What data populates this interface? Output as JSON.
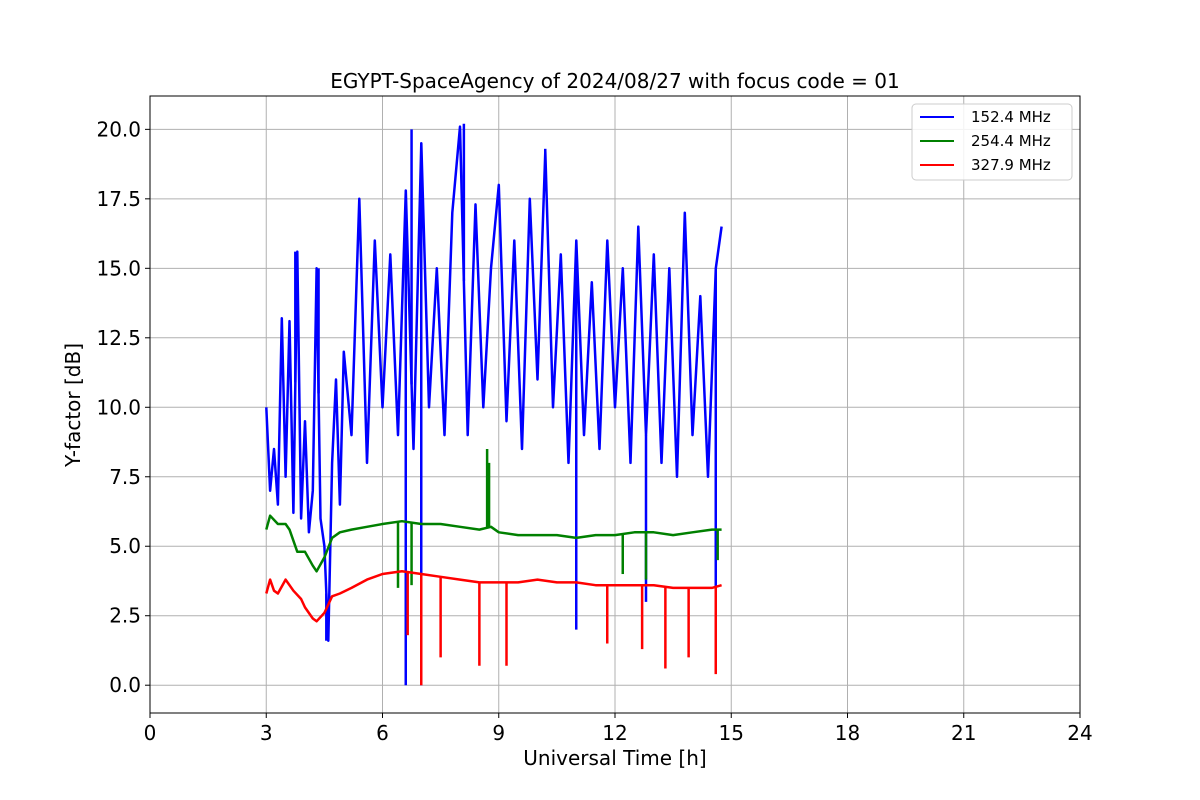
{
  "chart_data": {
    "type": "line",
    "title": "EGYPT-SpaceAgency of 2024/08/27 with focus code = 01",
    "xlabel": "Universal Time [h]",
    "ylabel": "Y-factor [dB]",
    "xlim": [
      0,
      24
    ],
    "ylim": [
      -1.0,
      21.2
    ],
    "xticks": [
      0,
      3,
      6,
      9,
      12,
      15,
      18,
      21,
      24
    ],
    "xtick_labels": [
      "0",
      "3",
      "6",
      "9",
      "12",
      "15",
      "18",
      "21",
      "24"
    ],
    "yticks": [
      0.0,
      2.5,
      5.0,
      7.5,
      10.0,
      12.5,
      15.0,
      17.5,
      20.0
    ],
    "ytick_labels": [
      "0.0",
      "2.5",
      "5.0",
      "7.5",
      "10.0",
      "12.5",
      "15.0",
      "17.5",
      "20.0"
    ],
    "grid": true,
    "legend_position": "top-right",
    "series": [
      {
        "name": "152.4 MHz",
        "color": "#0000ff",
        "x": [
          3.0,
          3.1,
          3.2,
          3.3,
          3.4,
          3.5,
          3.6,
          3.7,
          3.8,
          3.9,
          4.0,
          4.1,
          4.2,
          4.3,
          4.4,
          4.5,
          4.6,
          4.7,
          4.8,
          4.9,
          5.0,
          5.2,
          5.4,
          5.6,
          5.8,
          6.0,
          6.2,
          6.4,
          6.6,
          6.8,
          7.0,
          7.2,
          7.4,
          7.6,
          7.8,
          8.0,
          8.2,
          8.4,
          8.6,
          8.8,
          9.0,
          9.2,
          9.4,
          9.6,
          9.8,
          10.0,
          10.2,
          10.4,
          10.6,
          10.8,
          11.0,
          11.2,
          11.4,
          11.6,
          11.8,
          12.0,
          12.2,
          12.4,
          12.6,
          12.8,
          13.0,
          13.2,
          13.4,
          13.6,
          13.8,
          14.0,
          14.2,
          14.4,
          14.6,
          14.75
        ],
        "y": [
          10.0,
          7.0,
          8.5,
          6.5,
          13.2,
          7.5,
          13.1,
          6.2,
          15.6,
          6.0,
          9.5,
          5.5,
          7.0,
          15.0,
          6.0,
          5.0,
          1.6,
          8.0,
          11.0,
          6.5,
          12.0,
          9.0,
          17.5,
          8.0,
          16.0,
          10.0,
          15.5,
          9.0,
          17.8,
          8.5,
          19.5,
          10.0,
          15.0,
          9.0,
          17.0,
          20.1,
          9.0,
          17.3,
          10.0,
          15.0,
          18.0,
          9.5,
          16.0,
          8.5,
          17.5,
          11.0,
          19.2,
          10.0,
          15.5,
          8.0,
          16.0,
          9.0,
          14.5,
          8.5,
          16.0,
          10.0,
          15.0,
          8.0,
          16.5,
          9.0,
          15.5,
          8.0,
          15.0,
          7.5,
          17.0,
          9.0,
          14.0,
          7.5,
          15.0,
          16.5
        ],
        "dips": [
          [
            4.55,
            1.6
          ],
          [
            6.6,
            0.0
          ],
          [
            7.0,
            0.0
          ],
          [
            11.0,
            2.0
          ],
          [
            12.8,
            3.0
          ],
          [
            14.6,
            3.5
          ]
        ],
        "spikes": [
          [
            6.75,
            20.0
          ],
          [
            8.1,
            20.2
          ],
          [
            10.2,
            19.3
          ],
          [
            3.75,
            15.6
          ],
          [
            4.35,
            15.0
          ]
        ]
      },
      {
        "name": "254.4 MHz",
        "color": "#008000",
        "x": [
          3.0,
          3.1,
          3.3,
          3.5,
          3.6,
          3.8,
          4.0,
          4.2,
          4.3,
          4.5,
          4.7,
          4.9,
          5.2,
          5.6,
          6.0,
          6.5,
          7.0,
          7.5,
          8.0,
          8.5,
          8.8,
          9.0,
          9.5,
          10.0,
          10.5,
          11.0,
          11.5,
          12.0,
          12.5,
          13.0,
          13.5,
          14.0,
          14.5,
          14.75
        ],
        "y": [
          5.6,
          6.1,
          5.8,
          5.8,
          5.6,
          4.8,
          4.8,
          4.3,
          4.1,
          4.6,
          5.3,
          5.5,
          5.6,
          5.7,
          5.8,
          5.9,
          5.8,
          5.8,
          5.7,
          5.6,
          5.7,
          5.5,
          5.4,
          5.4,
          5.4,
          5.3,
          5.4,
          5.4,
          5.5,
          5.5,
          5.4,
          5.5,
          5.6,
          5.6
        ],
        "spikes": [
          [
            8.7,
            8.5
          ],
          [
            8.75,
            8.0
          ]
        ],
        "dips": [
          [
            6.4,
            3.5
          ],
          [
            6.75,
            3.6
          ],
          [
            12.2,
            4.0
          ],
          [
            12.8,
            3.8
          ],
          [
            14.65,
            4.5
          ]
        ]
      },
      {
        "name": "327.9 MHz",
        "color": "#ff0000",
        "x": [
          3.0,
          3.1,
          3.2,
          3.3,
          3.5,
          3.7,
          3.9,
          4.0,
          4.2,
          4.3,
          4.5,
          4.7,
          4.9,
          5.2,
          5.6,
          6.0,
          6.5,
          7.0,
          7.5,
          8.0,
          8.5,
          9.0,
          9.5,
          10.0,
          10.5,
          11.0,
          11.5,
          12.0,
          12.5,
          13.0,
          13.5,
          14.0,
          14.5,
          14.75
        ],
        "y": [
          3.3,
          3.8,
          3.4,
          3.3,
          3.8,
          3.4,
          3.1,
          2.8,
          2.4,
          2.3,
          2.6,
          3.2,
          3.3,
          3.5,
          3.8,
          4.0,
          4.1,
          4.0,
          3.9,
          3.8,
          3.7,
          3.7,
          3.7,
          3.8,
          3.7,
          3.7,
          3.6,
          3.6,
          3.6,
          3.6,
          3.5,
          3.5,
          3.5,
          3.6
        ],
        "dips": [
          [
            6.65,
            1.8
          ],
          [
            7.0,
            0.0
          ],
          [
            7.5,
            1.0
          ],
          [
            8.5,
            0.7
          ],
          [
            9.2,
            0.7
          ],
          [
            11.8,
            1.5
          ],
          [
            12.7,
            1.3
          ],
          [
            13.3,
            0.6
          ],
          [
            13.9,
            1.0
          ],
          [
            14.6,
            0.4
          ]
        ]
      }
    ]
  }
}
